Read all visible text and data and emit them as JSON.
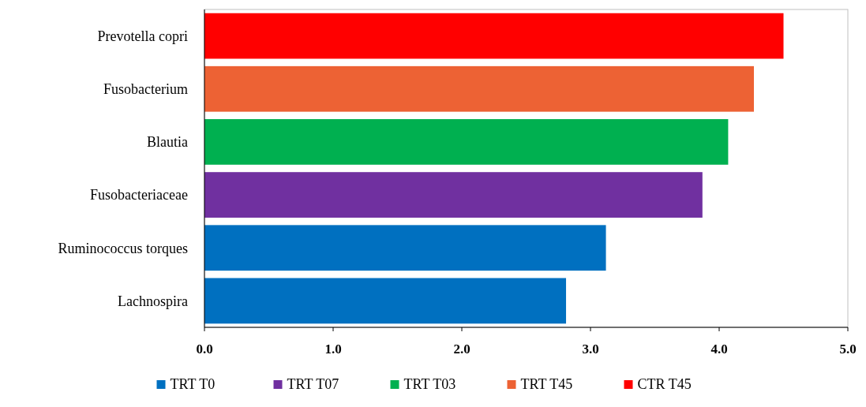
{
  "chart_data": {
    "type": "bar",
    "orientation": "horizontal",
    "stacked": true,
    "legend": "bottom",
    "categories": [
      "Prevotella copri",
      "Fusobacterium",
      "Blautia",
      "Fusobacteriaceae",
      "Ruminococcus torques",
      "Lachnospira"
    ],
    "series": [
      {
        "name": "TRT  T0",
        "color": "#0070c0",
        "values": [
          null,
          null,
          null,
          null,
          3.12,
          2.81
        ]
      },
      {
        "name": "TRT  T07",
        "color": "#7030a0",
        "values": [
          null,
          null,
          null,
          3.87,
          null,
          null
        ]
      },
      {
        "name": "TRT  T03",
        "color": "#00b050",
        "values": [
          null,
          null,
          4.07,
          null,
          null,
          null
        ]
      },
      {
        "name": "TRT  T45",
        "color": "#ed6234",
        "values": [
          null,
          4.27,
          null,
          null,
          null,
          null
        ]
      },
      {
        "name": "CTR  T45",
        "color": "#ff0000",
        "values": [
          4.5,
          null,
          null,
          null,
          null,
          null
        ]
      }
    ],
    "xlim": [
      0,
      5
    ],
    "xticks": [
      {
        "value": 0,
        "label": "0.0"
      },
      {
        "value": 1,
        "label": "1.0"
      },
      {
        "value": 2,
        "label": "2.0"
      },
      {
        "value": 3,
        "label": "3.0"
      },
      {
        "value": 4,
        "label": "4.0"
      },
      {
        "value": 5,
        "label": "5.0"
      }
    ]
  }
}
